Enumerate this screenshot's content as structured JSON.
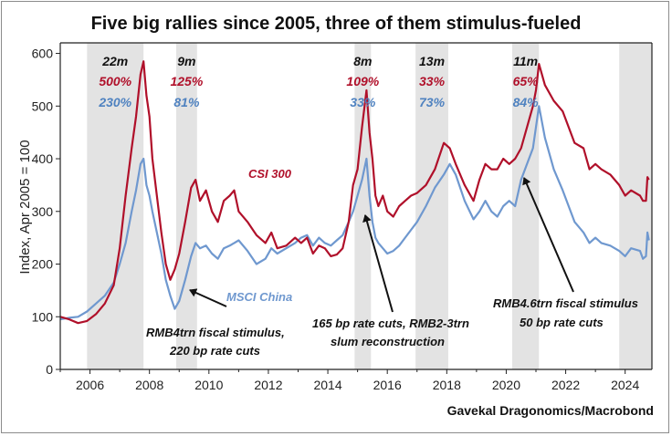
{
  "chart_data": {
    "type": "line",
    "title": "Five big rallies since 2005, three of them stimulus-fueled",
    "ylabel": "Index, Apr 2005 = 100",
    "xlabel": "",
    "xlim": [
      2005.0,
      2024.9
    ],
    "ylim": [
      0,
      620
    ],
    "x_ticks": [
      "2006",
      "2008",
      "2010",
      "2012",
      "2014",
      "2016",
      "2018",
      "2020",
      "2022",
      "2024"
    ],
    "y_ticks": [
      "0",
      "100",
      "200",
      "300",
      "400",
      "500",
      "600"
    ],
    "grid": false,
    "colors": {
      "csi": "#b0102a",
      "msci": "#6f98cf",
      "shade": "#e3e3e3"
    },
    "shaded_periods": [
      {
        "start": 2005.9,
        "end": 2007.8,
        "duration": "22m",
        "csi_gain": "500%",
        "msci_gain": "230%"
      },
      {
        "start": 2008.9,
        "end": 2009.6,
        "duration": "9m",
        "csi_gain": "125%",
        "msci_gain": "81%"
      },
      {
        "start": 2014.9,
        "end": 2015.45,
        "duration": "8m",
        "csi_gain": "109%",
        "msci_gain": "33%"
      },
      {
        "start": 2016.95,
        "end": 2018.05,
        "duration": "13m",
        "csi_gain": "33%",
        "msci_gain": "73%"
      },
      {
        "start": 2020.2,
        "end": 2021.1,
        "duration": "11m",
        "csi_gain": "65%",
        "msci_gain": "84%"
      },
      {
        "start": 2023.8,
        "end": 2024.9,
        "duration": "",
        "csi_gain": "",
        "msci_gain": ""
      }
    ],
    "series": [
      {
        "name": "CSI 300",
        "x": [
          2005.0,
          2005.3,
          2005.6,
          2005.9,
          2006.2,
          2006.5,
          2006.8,
          2007.0,
          2007.2,
          2007.4,
          2007.55,
          2007.7,
          2007.8,
          2007.9,
          2008.0,
          2008.1,
          2008.25,
          2008.4,
          2008.55,
          2008.7,
          2008.85,
          2009.0,
          2009.2,
          2009.4,
          2009.55,
          2009.7,
          2009.9,
          2010.1,
          2010.3,
          2010.5,
          2010.7,
          2010.85,
          2011.0,
          2011.3,
          2011.6,
          2011.9,
          2012.1,
          2012.3,
          2012.6,
          2012.9,
          2013.1,
          2013.3,
          2013.5,
          2013.7,
          2013.9,
          2014.1,
          2014.3,
          2014.5,
          2014.7,
          2014.85,
          2015.0,
          2015.15,
          2015.3,
          2015.4,
          2015.5,
          2015.6,
          2015.7,
          2015.85,
          2016.0,
          2016.2,
          2016.4,
          2016.6,
          2016.8,
          2017.0,
          2017.3,
          2017.6,
          2017.9,
          2018.1,
          2018.3,
          2018.6,
          2018.9,
          2019.1,
          2019.3,
          2019.5,
          2019.7,
          2019.9,
          2020.1,
          2020.3,
          2020.5,
          2020.7,
          2020.9,
          2021.0,
          2021.1,
          2021.3,
          2021.6,
          2021.9,
          2022.1,
          2022.3,
          2022.6,
          2022.8,
          2023.0,
          2023.2,
          2023.5,
          2023.8,
          2024.0,
          2024.2,
          2024.5,
          2024.6,
          2024.7,
          2024.75,
          2024.8
        ],
        "values": [
          100,
          95,
          88,
          92,
          105,
          125,
          160,
          230,
          330,
          420,
          480,
          560,
          585,
          520,
          480,
          400,
          330,
          260,
          200,
          170,
          190,
          220,
          280,
          345,
          360,
          320,
          340,
          300,
          280,
          320,
          330,
          340,
          300,
          280,
          255,
          240,
          260,
          230,
          235,
          250,
          240,
          250,
          220,
          235,
          230,
          215,
          218,
          230,
          280,
          350,
          380,
          460,
          530,
          450,
          400,
          330,
          310,
          330,
          300,
          290,
          310,
          320,
          330,
          335,
          350,
          380,
          430,
          420,
          390,
          350,
          320,
          360,
          390,
          380,
          380,
          400,
          390,
          400,
          420,
          460,
          500,
          530,
          580,
          540,
          510,
          490,
          460,
          430,
          420,
          380,
          390,
          380,
          370,
          350,
          330,
          340,
          330,
          320,
          320,
          365,
          360
        ]
      },
      {
        "name": "MSCI China",
        "x": [
          2005.0,
          2005.3,
          2005.6,
          2005.9,
          2006.2,
          2006.5,
          2006.8,
          2007.0,
          2007.2,
          2007.4,
          2007.55,
          2007.7,
          2007.8,
          2007.9,
          2008.0,
          2008.1,
          2008.25,
          2008.4,
          2008.55,
          2008.7,
          2008.85,
          2009.0,
          2009.2,
          2009.4,
          2009.55,
          2009.7,
          2009.9,
          2010.1,
          2010.3,
          2010.5,
          2010.7,
          2010.85,
          2011.0,
          2011.3,
          2011.6,
          2011.9,
          2012.1,
          2012.3,
          2012.6,
          2012.9,
          2013.1,
          2013.3,
          2013.5,
          2013.7,
          2013.9,
          2014.1,
          2014.3,
          2014.5,
          2014.7,
          2014.85,
          2015.0,
          2015.15,
          2015.3,
          2015.4,
          2015.5,
          2015.6,
          2015.7,
          2015.85,
          2016.0,
          2016.2,
          2016.4,
          2016.6,
          2016.8,
          2017.0,
          2017.3,
          2017.6,
          2017.9,
          2018.1,
          2018.3,
          2018.6,
          2018.9,
          2019.1,
          2019.3,
          2019.5,
          2019.7,
          2019.9,
          2020.1,
          2020.3,
          2020.5,
          2020.7,
          2020.9,
          2021.0,
          2021.1,
          2021.3,
          2021.6,
          2021.9,
          2022.1,
          2022.3,
          2022.6,
          2022.8,
          2023.0,
          2023.2,
          2023.5,
          2023.8,
          2024.0,
          2024.2,
          2024.5,
          2024.6,
          2024.7,
          2024.75,
          2024.8
        ],
        "values": [
          95,
          98,
          100,
          110,
          125,
          140,
          165,
          200,
          240,
          300,
          340,
          390,
          400,
          350,
          330,
          300,
          260,
          220,
          170,
          140,
          115,
          130,
          170,
          215,
          240,
          230,
          235,
          220,
          210,
          230,
          235,
          240,
          245,
          225,
          200,
          210,
          230,
          220,
          230,
          240,
          250,
          255,
          235,
          250,
          240,
          235,
          245,
          255,
          280,
          300,
          330,
          360,
          400,
          330,
          280,
          250,
          240,
          230,
          220,
          225,
          235,
          250,
          265,
          280,
          310,
          345,
          370,
          390,
          370,
          320,
          285,
          300,
          320,
          300,
          290,
          310,
          320,
          310,
          360,
          390,
          420,
          460,
          500,
          440,
          380,
          340,
          310,
          280,
          260,
          240,
          250,
          240,
          235,
          225,
          215,
          230,
          225,
          210,
          215,
          260,
          245
        ]
      }
    ],
    "annotations": {
      "csi_label": "CSI 300",
      "msci_label": "MSCI China",
      "stimulus_2008_line1": "RMB4trn fiscal stimulus,",
      "stimulus_2008_line2": "220 bp rate cuts",
      "stimulus_2015_line1": "165 bp rate cuts, RMB2-3trn",
      "stimulus_2015_line2": "slum reconstruction",
      "stimulus_2020_line1": "RMB4.6trn fiscal stimulus",
      "stimulus_2020_line2": "50 bp rate cuts"
    },
    "source": "Gavekal Dragonomics/Macrobond"
  }
}
